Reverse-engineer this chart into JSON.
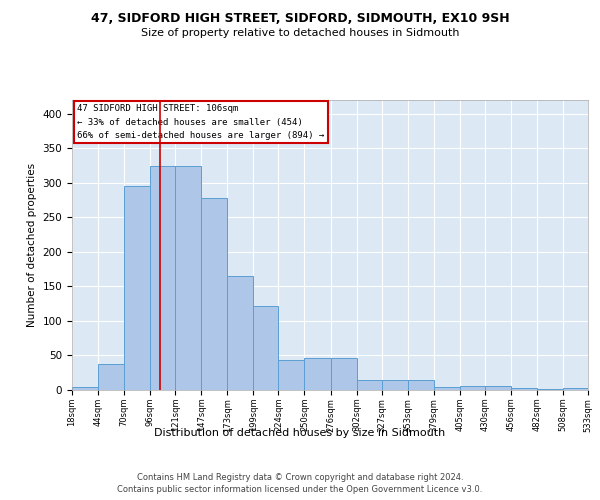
{
  "title1": "47, SIDFORD HIGH STREET, SIDFORD, SIDMOUTH, EX10 9SH",
  "title2": "Size of property relative to detached houses in Sidmouth",
  "xlabel": "Distribution of detached houses by size in Sidmouth",
  "ylabel": "Number of detached properties",
  "footer1": "Contains HM Land Registry data © Crown copyright and database right 2024.",
  "footer2": "Contains public sector information licensed under the Open Government Licence v3.0.",
  "annotation_line1": "47 SIDFORD HIGH STREET: 106sqm",
  "annotation_line2": "← 33% of detached houses are smaller (454)",
  "annotation_line3": "66% of semi-detached houses are larger (894) →",
  "bar_values": [
    4,
    38,
    295,
    325,
    325,
    278,
    165,
    122,
    44,
    46,
    46,
    14,
    15,
    15,
    5,
    6,
    6,
    3,
    1,
    3
  ],
  "bin_edges": [
    18,
    44,
    70,
    96,
    121,
    147,
    173,
    199,
    224,
    250,
    276,
    302,
    327,
    353,
    379,
    405,
    430,
    456,
    482,
    508,
    533
  ],
  "tick_labels": [
    "18sqm",
    "44sqm",
    "70sqm",
    "96sqm",
    "121sqm",
    "147sqm",
    "173sqm",
    "199sqm",
    "224sqm",
    "250sqm",
    "276sqm",
    "302sqm",
    "327sqm",
    "353sqm",
    "379sqm",
    "405sqm",
    "430sqm",
    "456sqm",
    "482sqm",
    "508sqm",
    "533sqm"
  ],
  "bar_color": "#aec6e8",
  "bar_edge_color": "#5a9fd4",
  "subject_value": 106,
  "vline_color": "#cc0000",
  "annotation_box_color": "#cc0000",
  "bg_color": "#dce9f5",
  "ylim": [
    0,
    420
  ],
  "yticks": [
    0,
    50,
    100,
    150,
    200,
    250,
    300,
    350,
    400
  ]
}
